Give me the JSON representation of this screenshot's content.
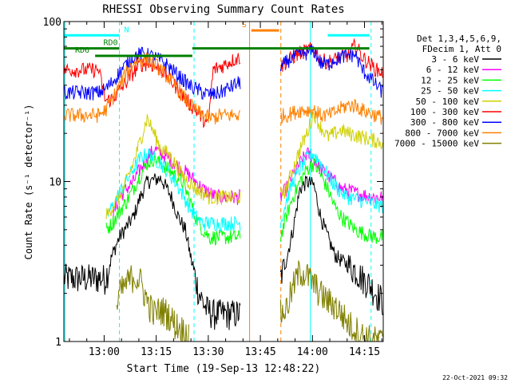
{
  "chart_data": {
    "type": "line",
    "title": "RHESSI Observing Summary Count Rates",
    "xlabel": "Start Time (19-Sep-13 12:48:22)",
    "ylabel": "Count Rate (s⁻¹ detector⁻¹)",
    "yscale": "log",
    "ylim": [
      1,
      100
    ],
    "xlim_minutes": [
      0,
      92
    ],
    "x_ticks": [
      "13:00",
      "13:15",
      "13:30",
      "13:45",
      "14:00",
      "14:15"
    ],
    "x_tick_minutes": [
      11.6,
      26.6,
      41.6,
      56.6,
      71.6,
      86.6
    ],
    "y_ticks": [
      "1",
      "10",
      "100"
    ],
    "y_tick_values": [
      1,
      10,
      100
    ],
    "legend_header": [
      "Det 1,3,4,5,6,9,",
      "FDecim 1, Att 0"
    ],
    "legend": [
      {
        "name": "3 - 6 keV",
        "color": "#000000"
      },
      {
        "name": "6 - 12 keV",
        "color": "#ff00ff"
      },
      {
        "name": "12 - 25 keV",
        "color": "#00ff00"
      },
      {
        "name": "25 - 50 keV",
        "color": "#00ffff"
      },
      {
        "name": "50 - 100 keV",
        "color": "#d0d000"
      },
      {
        "name": "100 - 300 keV",
        "color": "#ff0000"
      },
      {
        "name": "300 - 800 keV",
        "color": "#0000ff"
      },
      {
        "name": "800 - 7000 keV",
        "color": "#ff8000"
      },
      {
        "name": "7000 - 15000 keV",
        "color": "#808000"
      }
    ],
    "series": [
      {
        "name": "3 - 6 keV",
        "color": "#000000",
        "x": [
          0,
          12,
          14,
          16,
          20,
          22,
          24,
          28,
          31,
          33,
          35,
          37,
          39,
          41,
          43,
          51,
          62,
          62.4,
          64,
          66,
          68,
          70,
          72,
          74,
          76,
          78,
          80,
          82,
          84,
          86,
          88,
          90,
          92
        ],
        "y": [
          2.5,
          2.5,
          3.5,
          4.5,
          6,
          8,
          10,
          10.5,
          8,
          6,
          5,
          3,
          2,
          1.6,
          1.5,
          1.5,
          null,
          2.5,
          3.2,
          5,
          9,
          10,
          9.5,
          6,
          4.5,
          3.5,
          3.2,
          3,
          2.8,
          2.5,
          2.3,
          2,
          1.8
        ]
      },
      {
        "name": "6 - 12 keV",
        "color": "#ff00ff",
        "x": [
          0,
          14,
          16,
          18,
          20,
          22,
          24,
          26,
          28,
          30,
          32,
          34,
          36,
          38,
          40,
          42,
          44,
          46,
          51,
          62,
          62.4,
          64,
          66,
          68,
          70,
          72,
          74,
          76,
          78,
          80,
          82,
          84,
          86,
          88,
          90,
          92
        ],
        "y": [
          null,
          6,
          8,
          9,
          10,
          12,
          14,
          16,
          15,
          14,
          13,
          12,
          11,
          10,
          9,
          8.5,
          8,
          8,
          8,
          null,
          8,
          9,
          11,
          13,
          15,
          14,
          12,
          11,
          10,
          9,
          8.8,
          8.5,
          8.3,
          8.1,
          8,
          8
        ]
      },
      {
        "name": "12 - 25 keV",
        "color": "#00ff00",
        "x": [
          0,
          12,
          14,
          16,
          18,
          20,
          22,
          24,
          26,
          28,
          30,
          32,
          34,
          36,
          38,
          40,
          42,
          44,
          46,
          51,
          62,
          62.4,
          64,
          66,
          68,
          70,
          72,
          74,
          76,
          78,
          80,
          82,
          84,
          86,
          88,
          90,
          92
        ],
        "y": [
          null,
          5,
          5.5,
          6.5,
          7.5,
          9,
          11,
          13,
          14,
          13,
          12,
          11,
          10,
          8,
          6,
          5,
          4.5,
          4.5,
          4.5,
          4.5,
          null,
          4.5,
          6,
          8,
          10,
          12,
          13,
          11,
          9,
          7,
          6,
          5.5,
          5,
          4.8,
          4.6,
          4.5,
          4.5
        ]
      },
      {
        "name": "25 - 50 keV",
        "color": "#00ffff",
        "x": [
          0,
          12,
          14,
          16,
          18,
          20,
          22,
          24,
          26,
          28,
          30,
          32,
          34,
          36,
          38,
          40,
          42,
          44,
          46,
          51,
          62,
          62.4,
          64,
          66,
          68,
          70,
          72,
          74,
          76,
          78,
          80,
          82,
          84,
          86,
          88,
          90,
          92
        ],
        "y": [
          null,
          6,
          7,
          8.5,
          10,
          12,
          14,
          15,
          14,
          13,
          11.5,
          10,
          8.5,
          7,
          6,
          5.5,
          5.5,
          5.5,
          5.5,
          5.5,
          null,
          5.5,
          7.5,
          10,
          12,
          14,
          15,
          13,
          11,
          9.5,
          8.5,
          8,
          7.8,
          7.6,
          7.4,
          7.2,
          7
        ]
      },
      {
        "name": "50 - 100 keV",
        "color": "#d0d000",
        "x": [
          0,
          12,
          14,
          16,
          18,
          20,
          22,
          24,
          26,
          28,
          30,
          32,
          34,
          36,
          38,
          40,
          42,
          44,
          46,
          51,
          62,
          62.4,
          64,
          66,
          68,
          70,
          72,
          74,
          76,
          78,
          80,
          82,
          84,
          86,
          88,
          90,
          92
        ],
        "y": [
          null,
          6,
          7,
          8,
          10,
          13,
          18,
          25,
          20,
          16,
          15,
          13,
          11,
          10,
          9,
          8.5,
          8,
          8,
          8,
          8,
          null,
          8,
          9,
          12,
          16,
          20,
          27,
          22,
          19,
          20,
          21,
          20,
          19.5,
          19,
          18.5,
          18,
          17.5
        ]
      },
      {
        "name": "100 - 300 keV",
        "color": "#ff0000",
        "x": [
          0,
          10,
          12,
          14,
          16,
          18,
          20,
          22,
          24,
          26,
          28,
          30,
          32,
          34,
          36,
          38,
          40,
          41.5,
          43,
          45,
          47,
          49,
          51,
          62,
          62.4,
          64,
          66,
          68,
          70,
          72,
          74,
          76,
          78,
          80,
          82,
          84,
          86,
          88,
          90,
          92
        ],
        "y": [
          50,
          50,
          32,
          33,
          37,
          42,
          48,
          54,
          55,
          53,
          50,
          45,
          40,
          35,
          31,
          28,
          25,
          22,
          50,
          52,
          55,
          58,
          60,
          null,
          52,
          56,
          60,
          64,
          66,
          68,
          58,
          56,
          58,
          60,
          62,
          72,
          60,
          55,
          50,
          48
        ]
      },
      {
        "name": "300 - 800 keV",
        "color": "#0000ff",
        "x": [
          0,
          10,
          12,
          14,
          16,
          18,
          20,
          22,
          24,
          26,
          28,
          30,
          32,
          34,
          36,
          38,
          40,
          42,
          43,
          45,
          47,
          49,
          51,
          62,
          62.4,
          64,
          66,
          68,
          70,
          72,
          74,
          76,
          78,
          80,
          82,
          84,
          86,
          88,
          90,
          92
        ],
        "y": [
          36,
          36,
          38,
          42,
          48,
          54,
          60,
          63,
          62,
          60,
          57,
          53,
          48,
          44,
          40,
          38,
          36,
          35,
          35,
          36,
          38,
          40,
          42,
          null,
          50,
          56,
          60,
          62,
          64,
          66,
          55,
          54,
          58,
          60,
          62,
          62,
          50,
          45,
          40,
          36
        ]
      },
      {
        "name": "800 - 7000 keV",
        "color": "#ff8000",
        "x": [
          0,
          10,
          12,
          14,
          16,
          18,
          20,
          22,
          24,
          26,
          28,
          30,
          32,
          34,
          36,
          38,
          40,
          42,
          43,
          45,
          47,
          49,
          51,
          62,
          62.4,
          64,
          66,
          68,
          70,
          72,
          74,
          76,
          78,
          80,
          82,
          84,
          86,
          88,
          90,
          92
        ],
        "y": [
          26,
          26,
          28,
          33,
          40,
          48,
          55,
          58,
          58,
          55,
          50,
          45,
          40,
          35,
          31,
          28,
          26,
          25,
          25,
          26,
          26,
          26,
          26,
          null,
          26,
          26,
          27,
          28,
          28,
          28,
          26,
          26,
          27,
          29,
          30,
          30,
          28,
          27,
          26,
          25
        ]
      },
      {
        "name": "7000 - 15000 keV",
        "color": "#808000",
        "x": [
          0,
          15,
          16,
          18,
          20,
          22,
          24,
          26,
          28,
          30,
          32,
          34,
          36,
          38,
          62,
          62.4,
          64,
          66,
          68,
          70,
          72,
          74,
          76,
          78,
          80,
          82,
          84,
          86,
          88,
          90,
          92
        ],
        "y": [
          null,
          1.5,
          2,
          2.3,
          2.6,
          2.4,
          1.8,
          1.5,
          1.6,
          1.5,
          1.3,
          1.2,
          1.1,
          null,
          null,
          1.5,
          1.6,
          2.2,
          2.8,
          2.6,
          2.3,
          2,
          1.8,
          1.7,
          1.5,
          1.3,
          1.2,
          1.1,
          1.05,
          1.02,
          1
        ]
      }
    ],
    "annotations": [
      {
        "text": "N",
        "color": "#00ffff"
      },
      {
        "text": "RD0",
        "color": "#008000"
      },
      {
        "text": "RD6",
        "color": "#008000"
      },
      {
        "text": "S",
        "color": "#ff8000"
      }
    ],
    "segments": [
      {
        "label": "N",
        "color": "#00ffff",
        "x": [
          0,
          16
        ],
        "y": 82
      },
      {
        "label": "N",
        "color": "#00ffff",
        "x": [
          76,
          88
        ],
        "y": 82
      },
      {
        "label": "RD0",
        "color": "#008000",
        "x": [
          0,
          16
        ],
        "y": 68
      },
      {
        "label": "RD6",
        "color": "#008000",
        "x": [
          9,
          37
        ],
        "y": 61
      },
      {
        "label": "",
        "color": "#008000",
        "x": [
          37,
          62
        ],
        "y": 68
      },
      {
        "label": "",
        "color": "#008000",
        "x": [
          62,
          88
        ],
        "y": 68
      },
      {
        "label": "S",
        "color": "#ff8000",
        "x": [
          54,
          62
        ],
        "y": 88
      }
    ],
    "vlines": [
      {
        "x": 0.3,
        "color": "#00ffff",
        "style": "solid"
      },
      {
        "x": 16,
        "color": "#00ffff",
        "style": "dashed"
      },
      {
        "x": 37.5,
        "color": "#00ffff",
        "style": "dashed"
      },
      {
        "x": 53.5,
        "color": "#ff8000",
        "style": "solid"
      },
      {
        "x": 62.5,
        "color": "#ff8000",
        "style": "dashed"
      },
      {
        "x": 71,
        "color": "#00ffff",
        "style": "solid"
      },
      {
        "x": 88.5,
        "color": "#00ffff",
        "style": "dashed"
      }
    ],
    "footer_date": "22-Oct-2021 09:32"
  }
}
